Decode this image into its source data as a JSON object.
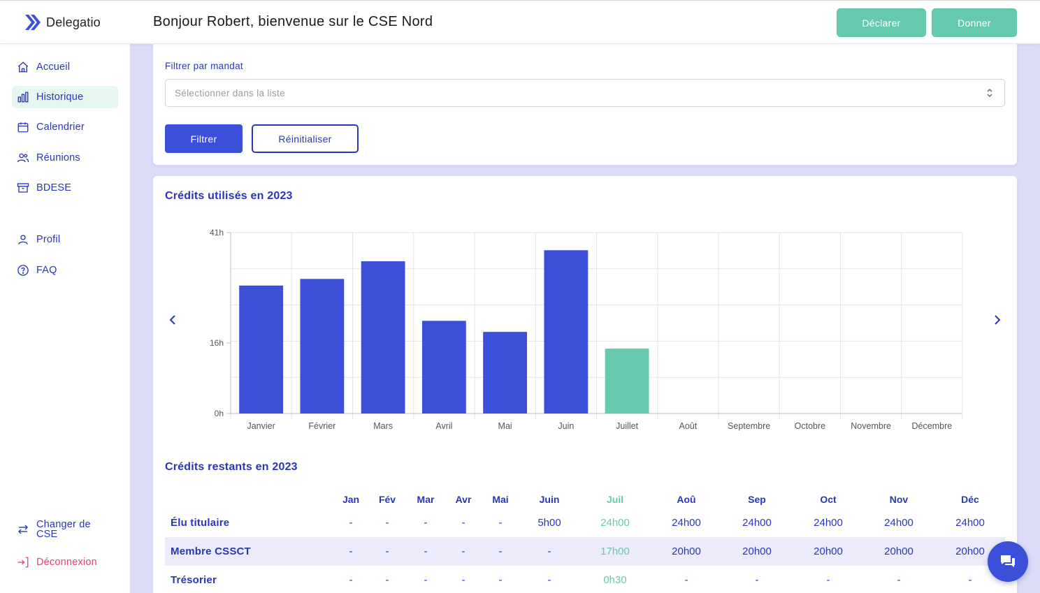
{
  "app": {
    "name": "Delegatio"
  },
  "header": {
    "greeting": "Bonjour Robert, bienvenue sur le CSE Nord",
    "declarer_label": "Déclarer",
    "donner_label": "Donner"
  },
  "sidebar": {
    "items": [
      {
        "label": "Accueil",
        "icon": "home-icon"
      },
      {
        "label": "Historique",
        "icon": "bar-chart-icon",
        "active": true
      },
      {
        "label": "Calendrier",
        "icon": "calendar-icon"
      },
      {
        "label": "Réunions",
        "icon": "users-icon"
      },
      {
        "label": "BDESE",
        "icon": "archive-icon"
      },
      {
        "label": "Profil",
        "icon": "user-icon"
      },
      {
        "label": "FAQ",
        "icon": "help-circle-icon"
      }
    ],
    "change_cse_label": "Changer de CSE",
    "logout_label": "Déconnexion"
  },
  "filter": {
    "label": "Filtrer par mandat",
    "placeholder": "Sélectionner dans la liste",
    "filter_button": "Filtrer",
    "reset_button": "Réinitialiser"
  },
  "credits_used": {
    "title": "Crédits utilisés en 2023"
  },
  "chart_data": {
    "type": "bar",
    "title": "Crédits utilisés en 2023",
    "categories": [
      "Janvier",
      "Février",
      "Mars",
      "Avril",
      "Mai",
      "Juin",
      "Juillet",
      "Août",
      "Septembre",
      "Octobre",
      "Novembre",
      "Décembre"
    ],
    "values": [
      29,
      30.5,
      34.5,
      21,
      18.5,
      37,
      14.7,
      0,
      0,
      0,
      0,
      0
    ],
    "highlight_index": 6,
    "ytick_labels": [
      "0h",
      "16h",
      "41h"
    ],
    "ytick_values": [
      0,
      16,
      41
    ],
    "ylim": [
      0,
      41
    ],
    "bar_color": "#3b4fd8",
    "highlight_color": "#65c9b0",
    "grid": true
  },
  "credits_remaining": {
    "title": "Crédits restants en 2023",
    "months": [
      "Jan",
      "Fév",
      "Mar",
      "Avr",
      "Mai",
      "Juin",
      "Juil",
      "Aoû",
      "Sep",
      "Oct",
      "Nov",
      "Déc"
    ],
    "rows": [
      {
        "label": "Élu titulaire",
        "values": [
          "-",
          "-",
          "-",
          "-",
          "-",
          "5h00",
          "24h00",
          "24h00",
          "24h00",
          "24h00",
          "24h00",
          "24h00"
        ]
      },
      {
        "label": "Membre CSSCT",
        "values": [
          "-",
          "-",
          "-",
          "-",
          "-",
          "-",
          "17h00",
          "20h00",
          "20h00",
          "20h00",
          "20h00",
          "20h00"
        ]
      },
      {
        "label": "Trésorier",
        "values": [
          "-",
          "-",
          "-",
          "-",
          "-",
          "-",
          "0h30",
          "-",
          "-",
          "-",
          "-",
          "-"
        ]
      }
    ]
  },
  "colors": {
    "primary": "#3b4fd8",
    "accent": "#65c9b0",
    "danger": "#e04766"
  }
}
